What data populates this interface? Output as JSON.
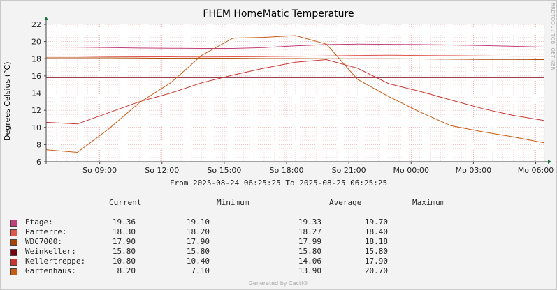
{
  "chart_data": {
    "type": "line",
    "title": "FHEM HomeMatic Temperature",
    "ylabel": "Degrees Celsius (°C)",
    "xlabel": "",
    "ylim": [
      6,
      22
    ],
    "yticks": [
      6,
      8,
      10,
      12,
      14,
      16,
      18,
      20,
      22
    ],
    "xticks": [
      "So 09:00",
      "So 12:00",
      "So 15:00",
      "So 18:00",
      "So 21:00",
      "Mo 00:00",
      "Mo 03:00",
      "Mo 06:00"
    ],
    "x_hours": [
      0,
      1.5,
      3,
      4.5,
      6,
      7.5,
      9,
      10.5,
      12,
      13.5,
      15,
      16.5,
      18,
      19.5,
      21,
      22.5,
      24
    ],
    "xlim_hours": [
      0,
      24
    ],
    "xtick_hours": [
      2.58,
      5.58,
      8.58,
      11.58,
      14.58,
      17.58,
      20.58,
      23.58
    ],
    "grid": true,
    "series": [
      {
        "name": "Etage",
        "color": "#c2407a",
        "values": [
          19.36,
          19.35,
          19.3,
          19.25,
          19.22,
          19.2,
          19.2,
          19.3,
          19.5,
          19.65,
          19.7,
          19.68,
          19.65,
          19.6,
          19.55,
          19.45,
          19.36
        ]
      },
      {
        "name": "Parterre",
        "color": "#e0564c",
        "values": [
          18.3,
          18.3,
          18.25,
          18.22,
          18.22,
          18.2,
          18.22,
          18.25,
          18.28,
          18.32,
          18.38,
          18.4,
          18.38,
          18.35,
          18.32,
          18.3,
          18.3
        ]
      },
      {
        "name": "WDC7000:",
        "color": "#a84606",
        "values": [
          18.1,
          18.1,
          18.1,
          18.08,
          18.05,
          18.05,
          18.05,
          18.02,
          18.02,
          18.0,
          18.0,
          18.0,
          17.98,
          17.95,
          17.92,
          17.92,
          17.9
        ]
      },
      {
        "name": "Weinkeller:",
        "color": "#7a0010",
        "values": [
          15.8,
          15.8,
          15.8,
          15.8,
          15.8,
          15.8,
          15.8,
          15.8,
          15.8,
          15.8,
          15.8,
          15.8,
          15.8,
          15.8,
          15.8,
          15.8,
          15.8
        ]
      },
      {
        "name": "Kellertreppe:",
        "color": "#c8362f",
        "values": [
          10.6,
          10.4,
          11.7,
          13.0,
          14.0,
          15.2,
          16.1,
          16.9,
          17.6,
          17.9,
          16.9,
          15.1,
          14.2,
          13.2,
          12.2,
          11.4,
          10.8
        ]
      },
      {
        "name": "Gartenhaus:",
        "color": "#c85c14",
        "values": [
          7.4,
          7.1,
          9.8,
          12.9,
          15.2,
          18.4,
          20.4,
          20.5,
          20.7,
          19.7,
          15.6,
          13.6,
          11.8,
          10.2,
          9.5,
          8.9,
          8.2
        ]
      }
    ]
  },
  "header": {
    "side_text": "RRDTOOL / TOBI OETIKER",
    "time_range": "From 2025-08-24 06:25:25 To 2025-08-25 06:25:25"
  },
  "legend": {
    "columns": [
      "Current",
      "Minimum",
      "Average",
      "Maximum"
    ],
    "rows": [
      {
        "label": "Etage:",
        "color": "#c2407a",
        "current": "19.36",
        "minimum": "19.10",
        "average": "19.33",
        "maximum": "19.70"
      },
      {
        "label": "Parterre:",
        "color": "#e0564c",
        "current": "18.30",
        "minimum": "18.20",
        "average": "18.27",
        "maximum": "18.40"
      },
      {
        "label": "WDC7000:",
        "color": "#a84606",
        "current": "17.90",
        "minimum": "17.90",
        "average": "17.99",
        "maximum": "18.18"
      },
      {
        "label": "Weinkeller:",
        "color": "#7a0010",
        "current": "15.80",
        "minimum": "15.80",
        "average": "15.80",
        "maximum": "15.80"
      },
      {
        "label": "Kellertreppe:",
        "color": "#c8362f",
        "current": "10.80",
        "minimum": "10.40",
        "average": "14.06",
        "maximum": "17.90"
      },
      {
        "label": "Gartenhaus:",
        "color": "#c85c14",
        "current": "8.20",
        "minimum": "7.10",
        "average": "13.90",
        "maximum": "20.70"
      }
    ]
  },
  "footer": {
    "text": "Generated by Cacti®"
  }
}
